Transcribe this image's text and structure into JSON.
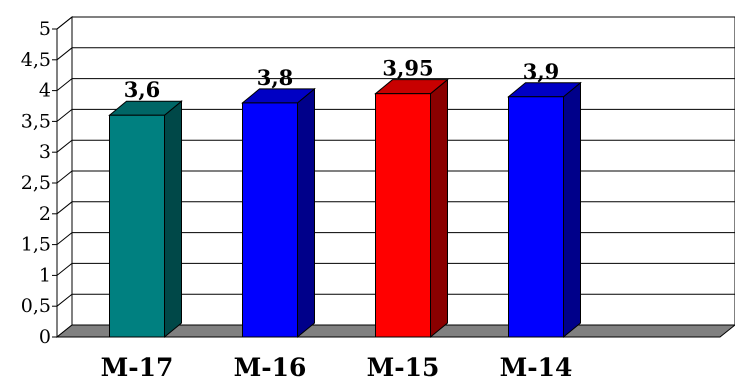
{
  "chart_data": {
    "type": "bar",
    "categories": [
      "M-17",
      "M-16",
      "M-15",
      "M-14"
    ],
    "values": [
      3.6,
      3.8,
      3.95,
      3.9
    ],
    "data_labels": [
      "3,6",
      "3,8",
      "3,95",
      "3,9"
    ],
    "y_ticks": [
      "0",
      "0,5",
      "1",
      "1,5",
      "2",
      "2,5",
      "3",
      "3,5",
      "4",
      "4,5",
      "5"
    ],
    "ylim": [
      0,
      5
    ],
    "grid": true,
    "legend": "none",
    "bar_colors": [
      {
        "front": "#008080",
        "side": "#004848",
        "top": "#006666"
      },
      {
        "front": "#0000ff",
        "side": "#00008a",
        "top": "#0000c4"
      },
      {
        "front": "#ff0000",
        "side": "#8a0000",
        "top": "#c80000"
      },
      {
        "front": "#0000ff",
        "side": "#00008a",
        "top": "#0000c4"
      }
    ],
    "floor_color": "#808080"
  }
}
